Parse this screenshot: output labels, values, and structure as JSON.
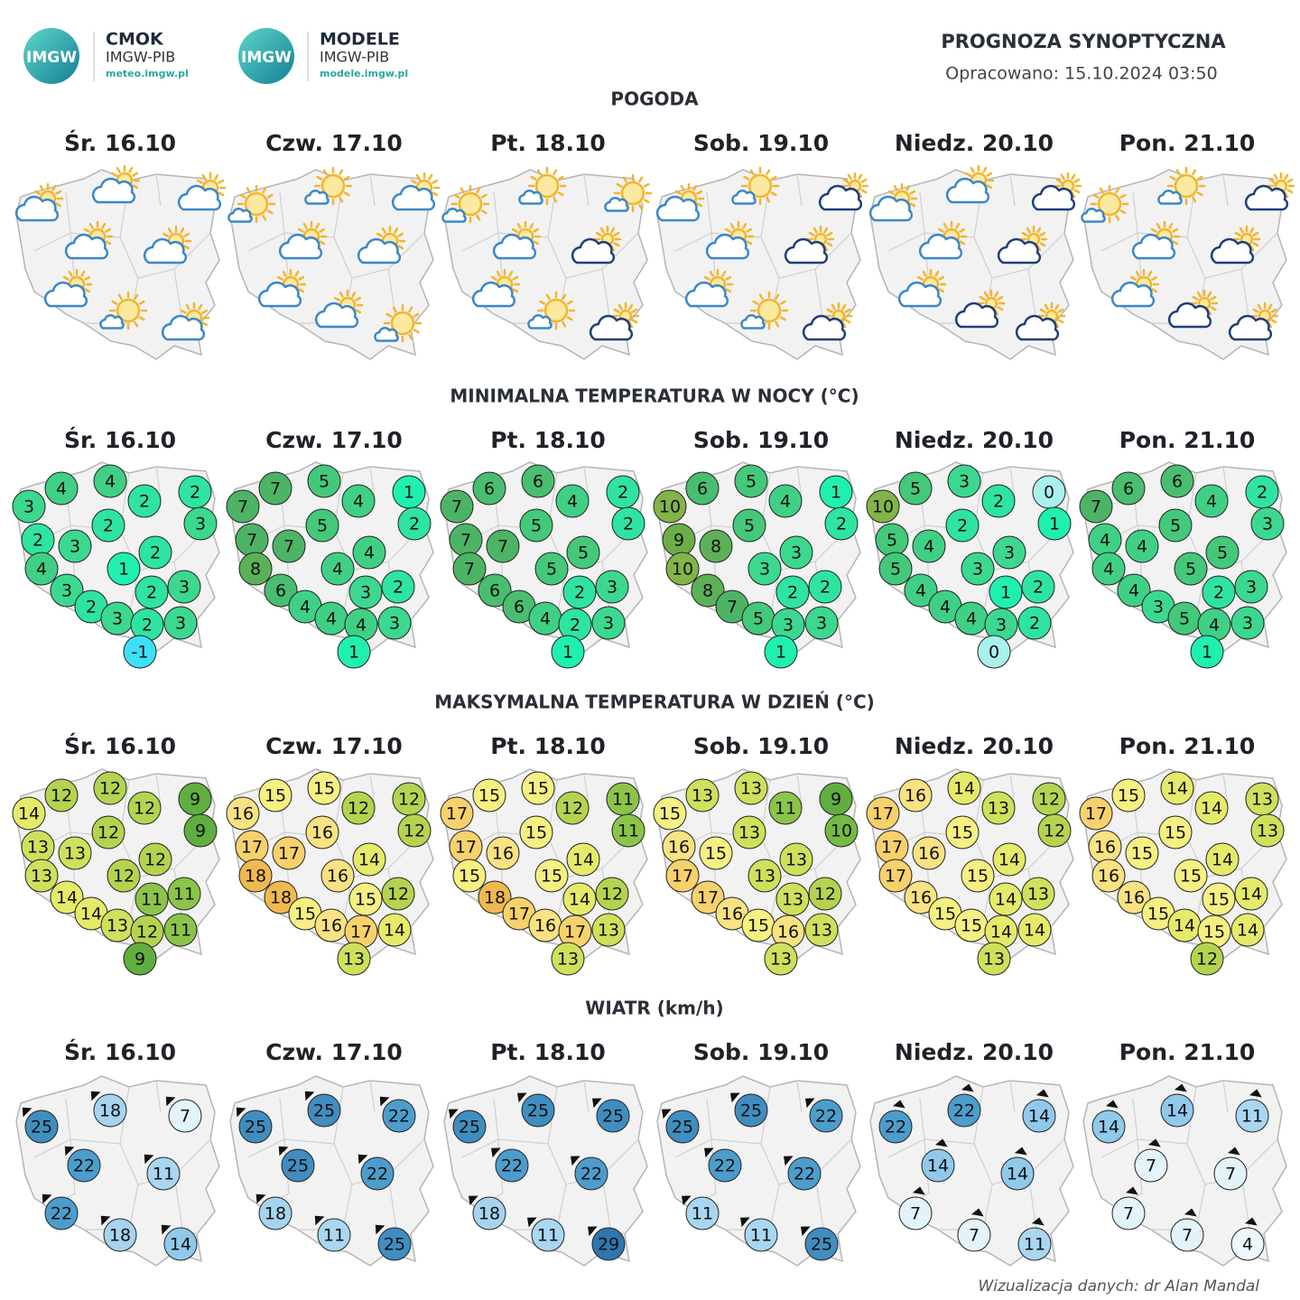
{
  "header": {
    "logos": [
      {
        "mark": "IMGW",
        "brand": "CMOK",
        "org": "IMGW-PIB",
        "url": "meteo.imgw.pl"
      },
      {
        "mark": "IMGW",
        "brand": "MODELE",
        "org": "IMGW-PIB",
        "url": "modele.imgw.pl"
      }
    ],
    "title": "PROGNOZA SYNOPTYCZNA",
    "subtitle": "Opracowano: 15.10.2024 03:50"
  },
  "days": [
    "Śr. 16.10",
    "Czw. 17.10",
    "Pt. 18.10",
    "Sob. 19.10",
    "Niedz. 20.10",
    "Pon. 21.10"
  ],
  "sections": [
    {
      "title": "POGODA"
    },
    {
      "title": "MINIMALNA TEMPERATURA W NOCY (°C)",
      "values": [
        [
          3,
          4,
          4,
          2,
          2,
          3,
          2,
          2,
          3,
          2,
          4,
          1,
          2,
          3,
          3,
          2,
          3,
          2,
          3,
          -1
        ],
        [
          7,
          7,
          5,
          4,
          1,
          2,
          5,
          7,
          7,
          4,
          8,
          4,
          3,
          2,
          6,
          4,
          4,
          4,
          3,
          1
        ],
        [
          7,
          6,
          6,
          4,
          2,
          2,
          5,
          7,
          7,
          5,
          7,
          5,
          2,
          3,
          6,
          6,
          4,
          2,
          3,
          1
        ],
        [
          10,
          6,
          5,
          4,
          1,
          2,
          5,
          9,
          8,
          3,
          10,
          3,
          2,
          2,
          8,
          7,
          5,
          3,
          3,
          1
        ],
        [
          10,
          5,
          3,
          2,
          0,
          1,
          2,
          5,
          4,
          3,
          5,
          3,
          1,
          2,
          4,
          4,
          4,
          3,
          2,
          0
        ],
        [
          7,
          6,
          6,
          4,
          2,
          3,
          5,
          4,
          4,
          5,
          4,
          5,
          2,
          3,
          4,
          3,
          5,
          4,
          3,
          1
        ]
      ]
    },
    {
      "title": "MAKSYMALNA TEMPERATURA W DZIEŃ (°C)",
      "values": [
        [
          14,
          12,
          12,
          12,
          9,
          9,
          12,
          13,
          13,
          12,
          13,
          12,
          11,
          11,
          14,
          14,
          13,
          12,
          11,
          9
        ],
        [
          16,
          15,
          15,
          12,
          12,
          12,
          16,
          17,
          17,
          14,
          18,
          16,
          15,
          12,
          18,
          15,
          16,
          17,
          14,
          13
        ],
        [
          17,
          15,
          15,
          12,
          11,
          11,
          15,
          17,
          16,
          14,
          15,
          15,
          14,
          12,
          18,
          17,
          16,
          17,
          13,
          13
        ],
        [
          15,
          13,
          13,
          11,
          9,
          10,
          13,
          16,
          15,
          13,
          17,
          13,
          13,
          12,
          17,
          16,
          15,
          16,
          13,
          13
        ],
        [
          17,
          16,
          14,
          13,
          12,
          12,
          15,
          17,
          16,
          14,
          17,
          15,
          14,
          13,
          16,
          15,
          15,
          14,
          14,
          13
        ],
        [
          17,
          15,
          14,
          14,
          13,
          13,
          15,
          16,
          15,
          14,
          16,
          15,
          15,
          14,
          16,
          15,
          14,
          15,
          14,
          12
        ]
      ]
    },
    {
      "title": "WIATR (km/h)",
      "values": [
        [
          25,
          18,
          7,
          22,
          11,
          22,
          18,
          14
        ],
        [
          25,
          25,
          22,
          25,
          22,
          18,
          11,
          25
        ],
        [
          25,
          25,
          25,
          22,
          22,
          18,
          11,
          29
        ],
        [
          25,
          25,
          22,
          22,
          22,
          11,
          11,
          25
        ],
        [
          22,
          22,
          14,
          14,
          14,
          7,
          7,
          11
        ],
        [
          14,
          14,
          11,
          7,
          7,
          7,
          7,
          4
        ]
      ]
    }
  ],
  "footer": "Wizualizacja danych: dr Alan Mandal"
}
